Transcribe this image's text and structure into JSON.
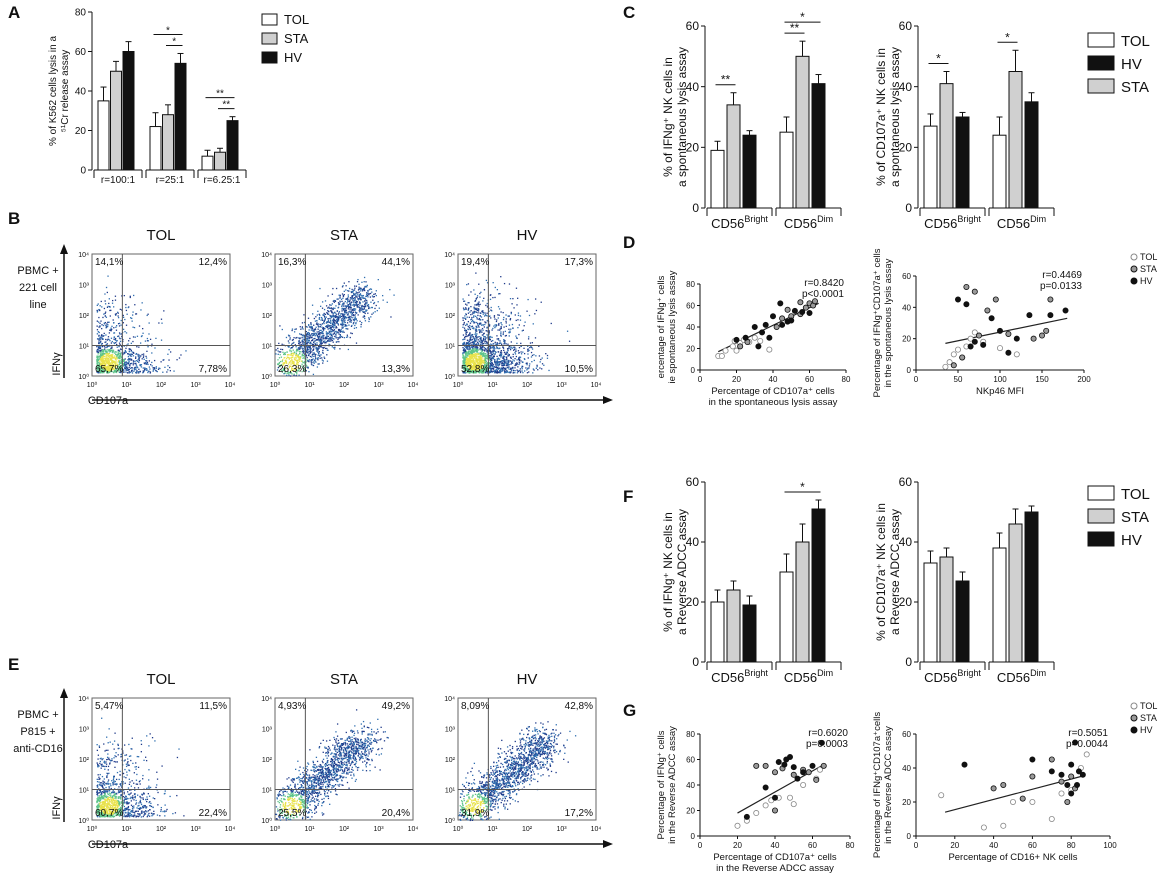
{
  "figure": {
    "panel_letters": [
      "A",
      "B",
      "C",
      "D",
      "E",
      "F",
      "G"
    ]
  },
  "colors": {
    "TOL": "#ffffff",
    "STA": "#d0d0d0",
    "HV": "#111111",
    "tol_dot": "#ffffff",
    "sta_dot": "#9a9a9a",
    "hv_dot": "#111111"
  },
  "panel_B": {
    "row_label": [
      "PBMC +",
      "221 cell",
      "line"
    ],
    "y_axis": "IFNγ",
    "x_axis": "CD107a",
    "plots": [
      {
        "title": "TOL",
        "q": [
          "14,1%",
          "12,4%",
          "65,7%",
          "7,78%"
        ],
        "density": "low"
      },
      {
        "title": "STA",
        "q": [
          "16,3%",
          "44,1%",
          "26,3%",
          "13,3%"
        ],
        "density": "diag"
      },
      {
        "title": "HV",
        "q": [
          "19,4%",
          "17,3%",
          "52,8%",
          "10,5%"
        ],
        "density": "high"
      }
    ],
    "ticks": [
      "10⁰",
      "10¹",
      "10²",
      "10³",
      "10⁴"
    ]
  },
  "panel_E": {
    "row_label": [
      "PBMC +",
      "P815 +",
      "anti-CD16"
    ],
    "y_axis": "IFNγ",
    "x_axis": "CD107a",
    "plots": [
      {
        "title": "TOL",
        "q": [
          "5,47%",
          "11,5%",
          "60,7%",
          "22,4%"
        ],
        "density": "low"
      },
      {
        "title": "STA",
        "q": [
          "4,93%",
          "49,2%",
          "25,5%",
          "20,4%"
        ],
        "density": "diag"
      },
      {
        "title": "HV",
        "q": [
          "8,09%",
          "42,8%",
          "31,9%",
          "17,2%"
        ],
        "density": "diag"
      }
    ],
    "ticks": [
      "10⁰",
      "10¹",
      "10²",
      "10³",
      "10⁴"
    ]
  },
  "chart_data": [
    {
      "id": "A",
      "type": "bar",
      "categories": [
        "r=100:1",
        "r=25:1",
        "r=6.25:1"
      ],
      "series": [
        {
          "name": "TOL",
          "values": [
            35,
            22,
            7
          ],
          "err": [
            7,
            7,
            3
          ]
        },
        {
          "name": "STA",
          "values": [
            50,
            28,
            9
          ],
          "err": [
            5,
            5,
            2
          ]
        },
        {
          "name": "HV",
          "values": [
            60,
            54,
            25
          ],
          "err": [
            5,
            5,
            2
          ]
        }
      ],
      "ylabel": [
        "% of K562 cells lysis in a",
        "⁵¹Cr release assay"
      ],
      "ylim": [
        0,
        80
      ],
      "yticks": [
        0,
        20,
        40,
        60,
        80
      ],
      "legend": [
        "TOL",
        "STA",
        "HV"
      ],
      "sig": [
        {
          "group": 1,
          "from": 1,
          "to": 2,
          "label": "*"
        },
        {
          "group": 1,
          "from": 0,
          "to": 2,
          "label": "*"
        },
        {
          "group": 2,
          "from": 1,
          "to": 2,
          "label": "**"
        },
        {
          "group": 2,
          "from": 0,
          "to": 2,
          "label": "**"
        }
      ]
    },
    {
      "id": "C1",
      "type": "bar",
      "categories": [
        "CD56",
        "CD56"
      ],
      "cat_sup": [
        "Bright",
        "Dim"
      ],
      "series": [
        {
          "name": "TOL",
          "values": [
            19,
            25
          ],
          "err": [
            3,
            5
          ]
        },
        {
          "name": "STA",
          "values": [
            34,
            50
          ],
          "err": [
            4,
            5
          ]
        },
        {
          "name": "HV",
          "values": [
            24,
            41
          ],
          "err": [
            1.5,
            3
          ]
        }
      ],
      "ylabel": [
        "% of IFNg⁺ NK cells in",
        "a spontaneous lysis assay"
      ],
      "ylim": [
        0,
        60
      ],
      "yticks": [
        0,
        20,
        40,
        60
      ],
      "sig": [
        {
          "group": 0,
          "from": 0,
          "to": 1,
          "label": "**"
        },
        {
          "group": 1,
          "from": 0,
          "to": 1,
          "label": "**"
        },
        {
          "group": 1,
          "from": 0,
          "to": 2,
          "label": "*"
        }
      ]
    },
    {
      "id": "C2",
      "type": "bar",
      "categories": [
        "CD56",
        "CD56"
      ],
      "cat_sup": [
        "Bright",
        "Dim"
      ],
      "series": [
        {
          "name": "TOL",
          "values": [
            27,
            24
          ],
          "err": [
            4,
            6
          ]
        },
        {
          "name": "STA",
          "values": [
            41,
            45
          ],
          "err": [
            4,
            7
          ]
        },
        {
          "name": "HV",
          "values": [
            30,
            35
          ],
          "err": [
            1.5,
            3
          ]
        }
      ],
      "ylabel": [
        "% of CD107a⁺ NK cells in",
        "a spontaneous lysis assay"
      ],
      "ylim": [
        0,
        60
      ],
      "yticks": [
        0,
        20,
        40,
        60
      ],
      "legend": [
        "TOL",
        "HV",
        "STA"
      ],
      "sig": [
        {
          "group": 0,
          "from": 0,
          "to": 1,
          "label": "*"
        },
        {
          "group": 1,
          "from": 0,
          "to": 1,
          "label": "*"
        }
      ]
    },
    {
      "id": "D1",
      "type": "scatter",
      "xlabel": [
        "Percentage of CD107a⁺ cells",
        "in the spontaneous lysis assay"
      ],
      "ylabel": [
        "ercentage of IFNg⁺ cells",
        "ie spontaneous lysis assay"
      ],
      "xlim": [
        0,
        80
      ],
      "ylim": [
        0,
        80
      ],
      "xticks": [
        0,
        20,
        40,
        60,
        80
      ],
      "yticks": [
        0,
        20,
        40,
        60,
        80
      ],
      "stats": [
        "r=0.8420",
        "p<0.0001"
      ],
      "fit": [
        [
          10,
          17
        ],
        [
          65,
          62
        ]
      ],
      "points": {
        "TOL": [
          [
            10,
            13
          ],
          [
            12,
            13
          ],
          [
            14,
            18
          ],
          [
            18,
            22
          ],
          [
            20,
            18
          ],
          [
            22,
            25
          ],
          [
            24,
            28
          ],
          [
            27,
            26
          ],
          [
            30,
            30
          ],
          [
            33,
            27
          ],
          [
            38,
            19
          ],
          [
            19,
            27
          ]
        ],
        "STA": [
          [
            22,
            22
          ],
          [
            26,
            26
          ],
          [
            45,
            48
          ],
          [
            50,
            50
          ],
          [
            55,
            52
          ],
          [
            58,
            58
          ],
          [
            60,
            62
          ],
          [
            62,
            60
          ],
          [
            63,
            64
          ],
          [
            55,
            63
          ],
          [
            42,
            40
          ],
          [
            48,
            56
          ]
        ],
        "HV": [
          [
            20,
            28
          ],
          [
            25,
            30
          ],
          [
            30,
            40
          ],
          [
            34,
            35
          ],
          [
            36,
            42
          ],
          [
            38,
            30
          ],
          [
            40,
            50
          ],
          [
            45,
            42
          ],
          [
            48,
            45
          ],
          [
            50,
            46
          ],
          [
            52,
            55
          ],
          [
            56,
            54
          ],
          [
            60,
            53
          ],
          [
            44,
            62
          ],
          [
            32,
            22
          ]
        ]
      },
      "legend": [
        "TOL",
        "STA",
        "HV"
      ]
    },
    {
      "id": "D2",
      "type": "scatter",
      "xlabel": [
        "NKp46 MFI"
      ],
      "ylabel": [
        "Percentage of IFNg⁺CD107a⁺ cells",
        "in the spontaneous lysis assay"
      ],
      "xlim": [
        0,
        200
      ],
      "ylim": [
        0,
        60
      ],
      "xticks": [
        0,
        50,
        100,
        150,
        200
      ],
      "yticks": [
        0,
        20,
        40,
        60
      ],
      "stats": [
        "r=0.4469",
        "p=0.0133"
      ],
      "fit": [
        [
          35,
          17
        ],
        [
          180,
          33
        ]
      ],
      "points": {
        "TOL": [
          [
            35,
            2
          ],
          [
            40,
            5
          ],
          [
            45,
            10
          ],
          [
            50,
            13
          ],
          [
            55,
            8
          ],
          [
            60,
            15
          ],
          [
            65,
            20
          ],
          [
            70,
            24
          ],
          [
            80,
            18
          ],
          [
            100,
            14
          ],
          [
            120,
            10
          ]
        ],
        "STA": [
          [
            45,
            3
          ],
          [
            55,
            8
          ],
          [
            60,
            53
          ],
          [
            70,
            50
          ],
          [
            75,
            22
          ],
          [
            85,
            38
          ],
          [
            95,
            45
          ],
          [
            110,
            23
          ],
          [
            140,
            20
          ],
          [
            150,
            22
          ],
          [
            155,
            25
          ],
          [
            160,
            45
          ]
        ],
        "HV": [
          [
            50,
            45
          ],
          [
            60,
            42
          ],
          [
            65,
            15
          ],
          [
            70,
            18
          ],
          [
            80,
            16
          ],
          [
            90,
            33
          ],
          [
            100,
            25
          ],
          [
            110,
            11
          ],
          [
            120,
            20
          ],
          [
            135,
            35
          ],
          [
            160,
            35
          ],
          [
            178,
            38
          ]
        ]
      },
      "legend": [
        "TOL",
        "STA",
        "HV"
      ]
    },
    {
      "id": "F1",
      "type": "bar",
      "categories": [
        "CD56",
        "CD56"
      ],
      "cat_sup": [
        "Bright",
        "Dim"
      ],
      "series": [
        {
          "name": "TOL",
          "values": [
            20,
            30
          ],
          "err": [
            4,
            6
          ]
        },
        {
          "name": "STA",
          "values": [
            24,
            40
          ],
          "err": [
            3,
            6
          ]
        },
        {
          "name": "HV",
          "values": [
            19,
            51
          ],
          "err": [
            3,
            3
          ]
        }
      ],
      "ylabel": [
        "% of IFNg⁺ NK cells in",
        "a Reverse ADCC assay"
      ],
      "ylim": [
        0,
        60
      ],
      "yticks": [
        0,
        20,
        40,
        60
      ],
      "sig": [
        {
          "group": 1,
          "from": 0,
          "to": 2,
          "label": "*"
        }
      ]
    },
    {
      "id": "F2",
      "type": "bar",
      "categories": [
        "CD56",
        "CD56"
      ],
      "cat_sup": [
        "Bright",
        "Dim"
      ],
      "series": [
        {
          "name": "TOL",
          "values": [
            33,
            38
          ],
          "err": [
            4,
            5
          ]
        },
        {
          "name": "STA",
          "values": [
            35,
            46
          ],
          "err": [
            3,
            5
          ]
        },
        {
          "name": "HV",
          "values": [
            27,
            50
          ],
          "err": [
            3,
            2
          ]
        }
      ],
      "ylabel": [
        "% of CD107a⁺ NK cells in",
        "a Reverse ADCC assay"
      ],
      "ylim": [
        0,
        60
      ],
      "yticks": [
        0,
        20,
        40,
        60
      ],
      "legend": [
        "TOL",
        "STA",
        "HV"
      ]
    },
    {
      "id": "G1",
      "type": "scatter",
      "xlabel": [
        "Percentage of CD107a⁺ cells",
        "in the Reverse ADCC assay"
      ],
      "ylabel": [
        "Percentage of IFNg⁺ cells",
        "in the Reverse ADCC assay"
      ],
      "xlim": [
        0,
        80
      ],
      "ylim": [
        0,
        80
      ],
      "xticks": [
        0,
        20,
        40,
        60,
        80
      ],
      "yticks": [
        0,
        20,
        40,
        60,
        80
      ],
      "stats": [
        "r=0.6020",
        "p=0.0003"
      ],
      "fit": [
        [
          20,
          18
        ],
        [
          66,
          56
        ]
      ],
      "points": {
        "TOL": [
          [
            20,
            8
          ],
          [
            25,
            12
          ],
          [
            30,
            18
          ],
          [
            35,
            24
          ],
          [
            38,
            28
          ],
          [
            42,
            30
          ],
          [
            48,
            30
          ],
          [
            55,
            40
          ],
          [
            62,
            45
          ],
          [
            64,
            52
          ],
          [
            50,
            25
          ]
        ],
        "STA": [
          [
            30,
            55
          ],
          [
            35,
            55
          ],
          [
            40,
            50
          ],
          [
            44,
            53
          ],
          [
            50,
            48
          ],
          [
            55,
            52
          ],
          [
            58,
            50
          ],
          [
            62,
            44
          ],
          [
            66,
            55
          ],
          [
            40,
            20
          ]
        ],
        "HV": [
          [
            25,
            15
          ],
          [
            35,
            38
          ],
          [
            40,
            30
          ],
          [
            42,
            58
          ],
          [
            45,
            56
          ],
          [
            48,
            62
          ],
          [
            50,
            54
          ],
          [
            52,
            45
          ],
          [
            55,
            50
          ],
          [
            60,
            55
          ],
          [
            65,
            73
          ],
          [
            46,
            60
          ]
        ]
      },
      "legend": [
        "TOL",
        "STA",
        "HV"
      ]
    },
    {
      "id": "G2",
      "type": "scatter",
      "xlabel": [
        "Percentage of CD16+ NK cells"
      ],
      "ylabel": [
        "Percentage of IFNg⁺CD107a⁺cells",
        "in the Reverse ADCC assay"
      ],
      "xlim": [
        0,
        100
      ],
      "ylim": [
        0,
        60
      ],
      "xticks": [
        0,
        20,
        40,
        60,
        80,
        100
      ],
      "yticks": [
        0,
        20,
        40,
        60
      ],
      "stats": [
        "r=0.5051",
        "p=0.0044"
      ],
      "fit": [
        [
          15,
          14
        ],
        [
          85,
          35
        ]
      ],
      "points": {
        "TOL": [
          [
            13,
            24
          ],
          [
            35,
            5
          ],
          [
            45,
            6
          ],
          [
            50,
            20
          ],
          [
            60,
            20
          ],
          [
            70,
            10
          ],
          [
            75,
            25
          ],
          [
            80,
            27
          ],
          [
            85,
            40
          ],
          [
            88,
            48
          ]
        ],
        "STA": [
          [
            40,
            28
          ],
          [
            45,
            30
          ],
          [
            55,
            22
          ],
          [
            60,
            35
          ],
          [
            70,
            45
          ],
          [
            75,
            32
          ],
          [
            80,
            35
          ],
          [
            82,
            28
          ],
          [
            78,
            20
          ]
        ],
        "HV": [
          [
            25,
            42
          ],
          [
            60,
            45
          ],
          [
            70,
            38
          ],
          [
            75,
            36
          ],
          [
            78,
            30
          ],
          [
            80,
            42
          ],
          [
            82,
            55
          ],
          [
            84,
            38
          ],
          [
            86,
            36
          ],
          [
            83,
            30
          ],
          [
            80,
            25
          ]
        ]
      },
      "legend": [
        "TOL",
        "STA",
        "HV"
      ]
    }
  ]
}
